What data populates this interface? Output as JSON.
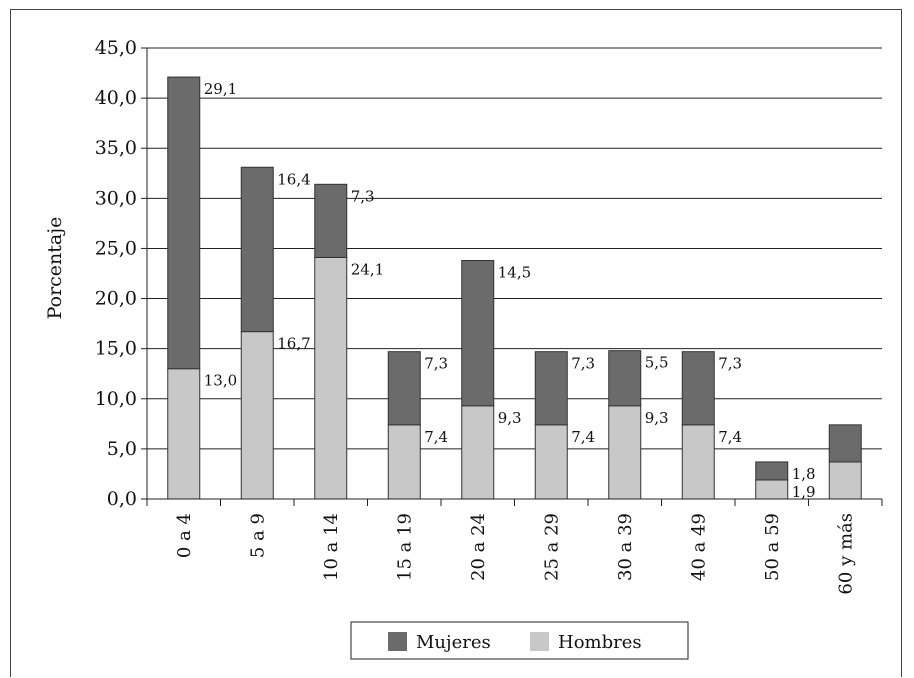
{
  "chart_data": {
    "type": "bar",
    "stacked": true,
    "title": "",
    "xlabel": "",
    "ylabel": "Porcentaje",
    "ylim": [
      0,
      45
    ],
    "ytick_step": 5,
    "ytick_labels": [
      "0,0",
      "5,0",
      "10,0",
      "15,0",
      "20,0",
      "25,0",
      "30,0",
      "35,0",
      "40,0",
      "45,0"
    ],
    "grid": true,
    "legend": "bottom",
    "categories": [
      "0 a 4",
      "5 a 9",
      "10 a 14",
      "15 a 19",
      "20 a 24",
      "25 a 29",
      "30 a 39",
      "40 a 49",
      "50 a 59",
      "60 y más"
    ],
    "series": [
      {
        "name": "Hombres",
        "color": "#c8c8c8",
        "values": [
          13.0,
          16.7,
          24.1,
          7.4,
          9.3,
          7.4,
          9.3,
          7.4,
          1.9,
          3.7
        ],
        "labels": [
          "13,0",
          "16,7",
          "24,1",
          "7,4",
          "9,3",
          "7,4",
          "9,3",
          "7,4",
          "1,9",
          ""
        ]
      },
      {
        "name": "Mujeres",
        "color": "#6b6b6b",
        "values": [
          29.1,
          16.4,
          7.3,
          7.3,
          14.5,
          7.3,
          5.5,
          7.3,
          1.8,
          3.7
        ],
        "labels": [
          "29,1",
          "16,4",
          "7,3",
          "7,3",
          "14,5",
          "7,3",
          "5,5",
          "7,3",
          "1,8",
          ""
        ]
      }
    ],
    "legend_order": [
      "Mujeres",
      "Hombres"
    ]
  }
}
